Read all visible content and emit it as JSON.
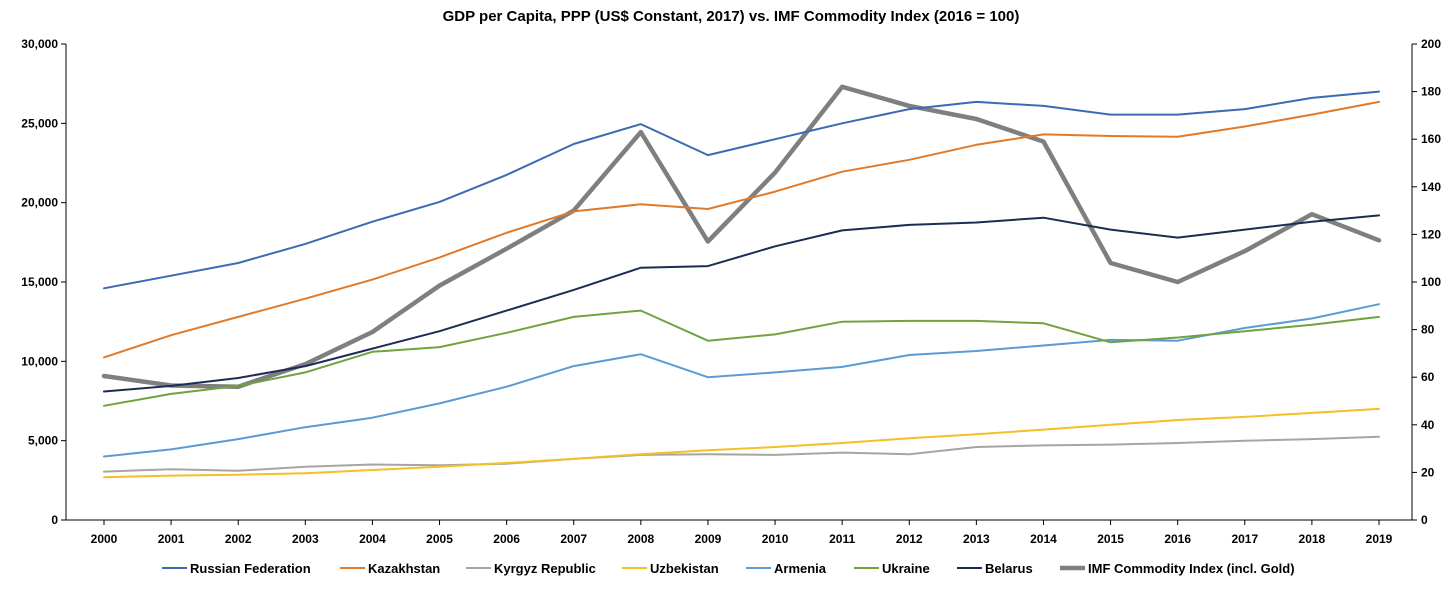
{
  "chart_data": {
    "type": "line",
    "title": "GDP per Capita, PPP (US$ Constant, 2017) vs. IMF Commodity Index (2016 = 100)",
    "xlabel": "",
    "ylabel": "",
    "y2label": "",
    "categories": [
      "2000",
      "2001",
      "2002",
      "2003",
      "2004",
      "2005",
      "2006",
      "2007",
      "2008",
      "2009",
      "2010",
      "2011",
      "2012",
      "2013",
      "2014",
      "2015",
      "2016",
      "2017",
      "2018",
      "2019"
    ],
    "ylim": [
      0,
      30000
    ],
    "y_ticks": [
      0,
      5000,
      10000,
      15000,
      20000,
      25000,
      30000
    ],
    "y_tick_labels": [
      "0",
      "5,000",
      "10,000",
      "15,000",
      "20,000",
      "25,000",
      "30,000"
    ],
    "y2lim": [
      0,
      200
    ],
    "y2_ticks": [
      0,
      20,
      40,
      60,
      80,
      100,
      120,
      140,
      160,
      180,
      200
    ],
    "y2_tick_labels": [
      "0",
      "20",
      "40",
      "60",
      "80",
      "100",
      "120",
      "140",
      "160",
      "180",
      "200"
    ],
    "grid": false,
    "legend_position": "bottom",
    "series": [
      {
        "name": "Russian Federation",
        "color": "#3c6ab3",
        "axis": "left",
        "width": 2,
        "values": [
          14600,
          15400,
          16200,
          17400,
          18800,
          20050,
          21750,
          23700,
          24950,
          23000,
          24000,
          25000,
          25900,
          26350,
          26100,
          25550,
          25550,
          25900,
          26600,
          27000
        ]
      },
      {
        "name": "Kazakhstan",
        "color": "#e07a2b",
        "axis": "left",
        "width": 2,
        "values": [
          10250,
          11650,
          12800,
          13950,
          15150,
          16550,
          18100,
          19450,
          19900,
          19600,
          20700,
          21950,
          22700,
          23650,
          24300,
          24200,
          24150,
          24800,
          25550,
          26350
        ]
      },
      {
        "name": "Kyrgyz Republic",
        "color": "#a5a5a5",
        "axis": "left",
        "width": 2,
        "values": [
          3050,
          3200,
          3100,
          3350,
          3500,
          3450,
          3550,
          3850,
          4100,
          4150,
          4100,
          4250,
          4150,
          4600,
          4700,
          4750,
          4850,
          5000,
          5100,
          5250
        ]
      },
      {
        "name": "Uzbekistan",
        "color": "#f6bf23",
        "axis": "left",
        "width": 2,
        "values": [
          2700,
          2800,
          2850,
          2950,
          3150,
          3350,
          3600,
          3850,
          4150,
          4400,
          4600,
          4850,
          5150,
          5400,
          5700,
          6000,
          6300,
          6500,
          6750,
          7000
        ]
      },
      {
        "name": "Armenia",
        "color": "#5b9bd5",
        "axis": "left",
        "width": 2,
        "values": [
          4000,
          4450,
          5100,
          5850,
          6450,
          7350,
          8400,
          9700,
          10450,
          9000,
          9300,
          9650,
          10400,
          10650,
          11000,
          11350,
          11300,
          12100,
          12700,
          13600
        ]
      },
      {
        "name": "Ukraine",
        "color": "#70a33f",
        "axis": "left",
        "width": 2,
        "values": [
          7200,
          7950,
          8450,
          9300,
          10600,
          10900,
          11800,
          12800,
          13200,
          11300,
          11700,
          12500,
          12550,
          12550,
          12400,
          11200,
          11500,
          11900,
          12300,
          12800
        ]
      },
      {
        "name": "Belarus",
        "color": "#1b2d52",
        "axis": "left",
        "width": 2,
        "values": [
          8100,
          8450,
          8950,
          9700,
          10800,
          11900,
          13200,
          14500,
          15900,
          16000,
          17250,
          18250,
          18600,
          18750,
          19050,
          18300,
          17800,
          18300,
          18800,
          19200
        ]
      },
      {
        "name": "IMF Commodity Index (incl. Gold)",
        "color": "#7f7f7f",
        "axis": "right",
        "width": 4.5,
        "values": [
          60.5,
          56.5,
          56,
          65.5,
          79,
          98.5,
          114,
          130,
          163,
          117,
          146,
          182,
          174,
          168.5,
          159,
          108,
          100,
          113,
          128.5,
          117.5
        ]
      }
    ]
  }
}
